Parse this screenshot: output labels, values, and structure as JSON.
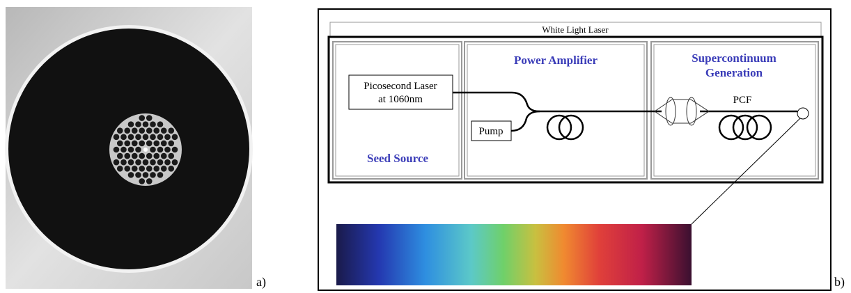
{
  "panel_a": {
    "label": "a)"
  },
  "panel_b": {
    "label": "b)",
    "title": "White Light Laser",
    "seed_source": {
      "laser_lines": [
        "Picosecond Laser",
        "at 1060nm"
      ],
      "caption": "Seed Source"
    },
    "power_amplifier": {
      "caption": "Power Amplifier",
      "pump": "Pump"
    },
    "supercontinuum": {
      "caption_lines": [
        "Supercontinuum",
        "Generation"
      ],
      "fiber": "PCF"
    }
  }
}
